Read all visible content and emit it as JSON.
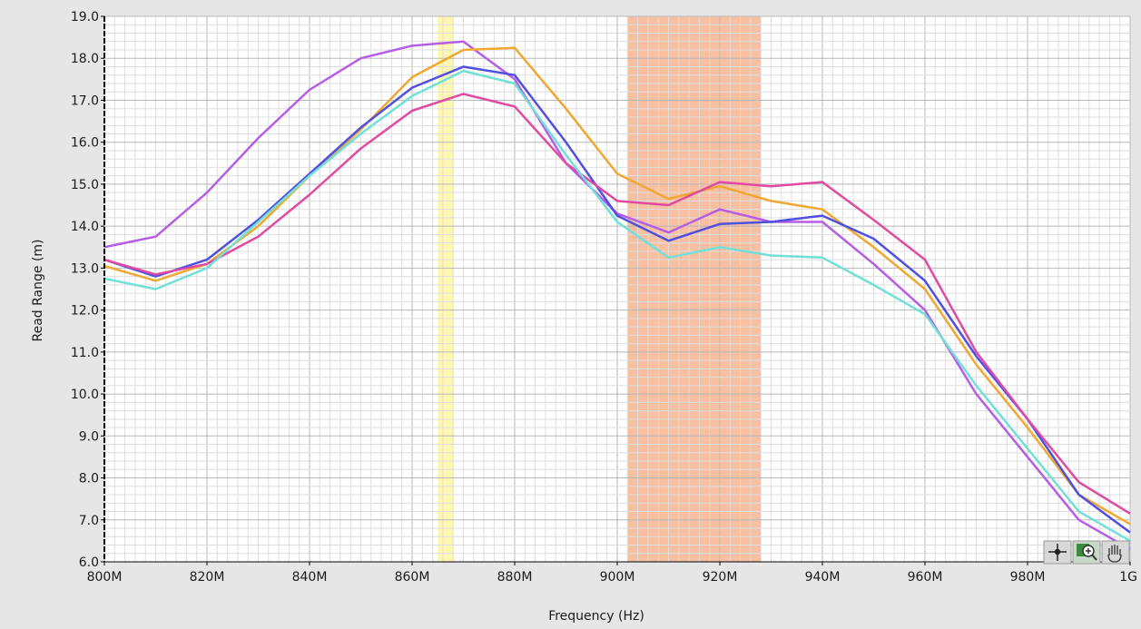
{
  "chart_data": {
    "type": "line",
    "title": "",
    "xlabel": "Frequency (Hz)",
    "ylabel": "Read Range (m)",
    "xlim": [
      800,
      1000
    ],
    "ylim": [
      6.0,
      19.0
    ],
    "x_ticks": [
      {
        "value": 800,
        "label": "800M"
      },
      {
        "value": 820,
        "label": "820M"
      },
      {
        "value": 840,
        "label": "840M"
      },
      {
        "value": 860,
        "label": "860M"
      },
      {
        "value": 880,
        "label": "880M"
      },
      {
        "value": 900,
        "label": "900M"
      },
      {
        "value": 920,
        "label": "920M"
      },
      {
        "value": 940,
        "label": "940M"
      },
      {
        "value": 960,
        "label": "960M"
      },
      {
        "value": 980,
        "label": "980M"
      },
      {
        "value": 1000,
        "label": "1G"
      }
    ],
    "y_ticks": [
      {
        "value": 6,
        "label": "6.0"
      },
      {
        "value": 7,
        "label": "7.0"
      },
      {
        "value": 8,
        "label": "8.0"
      },
      {
        "value": 9,
        "label": "9.0"
      },
      {
        "value": 10,
        "label": "10.0"
      },
      {
        "value": 11,
        "label": "11.0"
      },
      {
        "value": 12,
        "label": "12.0"
      },
      {
        "value": 13,
        "label": "13.0"
      },
      {
        "value": 14,
        "label": "14.0"
      },
      {
        "value": 15,
        "label": "15.0"
      },
      {
        "value": 16,
        "label": "16.0"
      },
      {
        "value": 17,
        "label": "17.0"
      },
      {
        "value": 18,
        "label": "18.0"
      },
      {
        "value": 19,
        "label": "19.0"
      }
    ],
    "grid": true,
    "legend": "none",
    "bands": [
      {
        "x_start": 865,
        "x_end": 868,
        "color": "#fff7b0"
      },
      {
        "x_start": 902,
        "x_end": 928,
        "color": "#f8bfa0"
      }
    ],
    "x": [
      800,
      810,
      820,
      830,
      840,
      850,
      860,
      870,
      880,
      890,
      900,
      910,
      920,
      930,
      940,
      950,
      960,
      970,
      980,
      990,
      1000
    ],
    "series": [
      {
        "color": "#b65de6",
        "values": [
          13.5,
          13.75,
          14.8,
          16.1,
          17.25,
          18.0,
          18.3,
          18.4,
          17.5,
          15.5,
          14.3,
          13.85,
          14.4,
          14.1,
          14.1,
          13.1,
          12.0,
          10.0,
          8.5,
          7.0,
          6.3
        ]
      },
      {
        "color": "#f0a830",
        "values": [
          13.05,
          12.7,
          13.1,
          14.0,
          15.2,
          16.3,
          17.55,
          18.2,
          18.25,
          16.8,
          15.25,
          14.65,
          14.95,
          14.6,
          14.4,
          13.5,
          12.5,
          10.7,
          9.2,
          7.6,
          6.9
        ]
      },
      {
        "color": "#5050e0",
        "values": [
          13.2,
          12.8,
          13.2,
          14.15,
          15.25,
          16.35,
          17.3,
          17.8,
          17.6,
          16.0,
          14.25,
          13.65,
          14.05,
          14.1,
          14.25,
          13.7,
          12.7,
          10.9,
          9.4,
          7.6,
          6.7
        ]
      },
      {
        "color": "#e04aa0",
        "values": [
          13.2,
          12.85,
          13.1,
          13.75,
          14.75,
          15.85,
          16.75,
          17.15,
          16.85,
          15.5,
          14.6,
          14.5,
          15.05,
          14.95,
          15.05,
          14.15,
          13.2,
          11.0,
          9.4,
          7.9,
          7.15
        ]
      },
      {
        "color": "#70e0d8",
        "values": [
          12.75,
          12.5,
          13.0,
          14.1,
          15.2,
          16.2,
          17.1,
          17.7,
          17.4,
          15.7,
          14.1,
          13.25,
          13.5,
          13.3,
          13.25,
          12.6,
          11.9,
          10.2,
          8.7,
          7.2,
          6.5
        ]
      }
    ]
  },
  "palette": {
    "tools": [
      {
        "name": "cursor-tool",
        "icon": "crosshair-icon"
      },
      {
        "name": "zoom-tool",
        "icon": "zoom-icon"
      },
      {
        "name": "pan-tool",
        "icon": "hand-icon"
      }
    ]
  }
}
